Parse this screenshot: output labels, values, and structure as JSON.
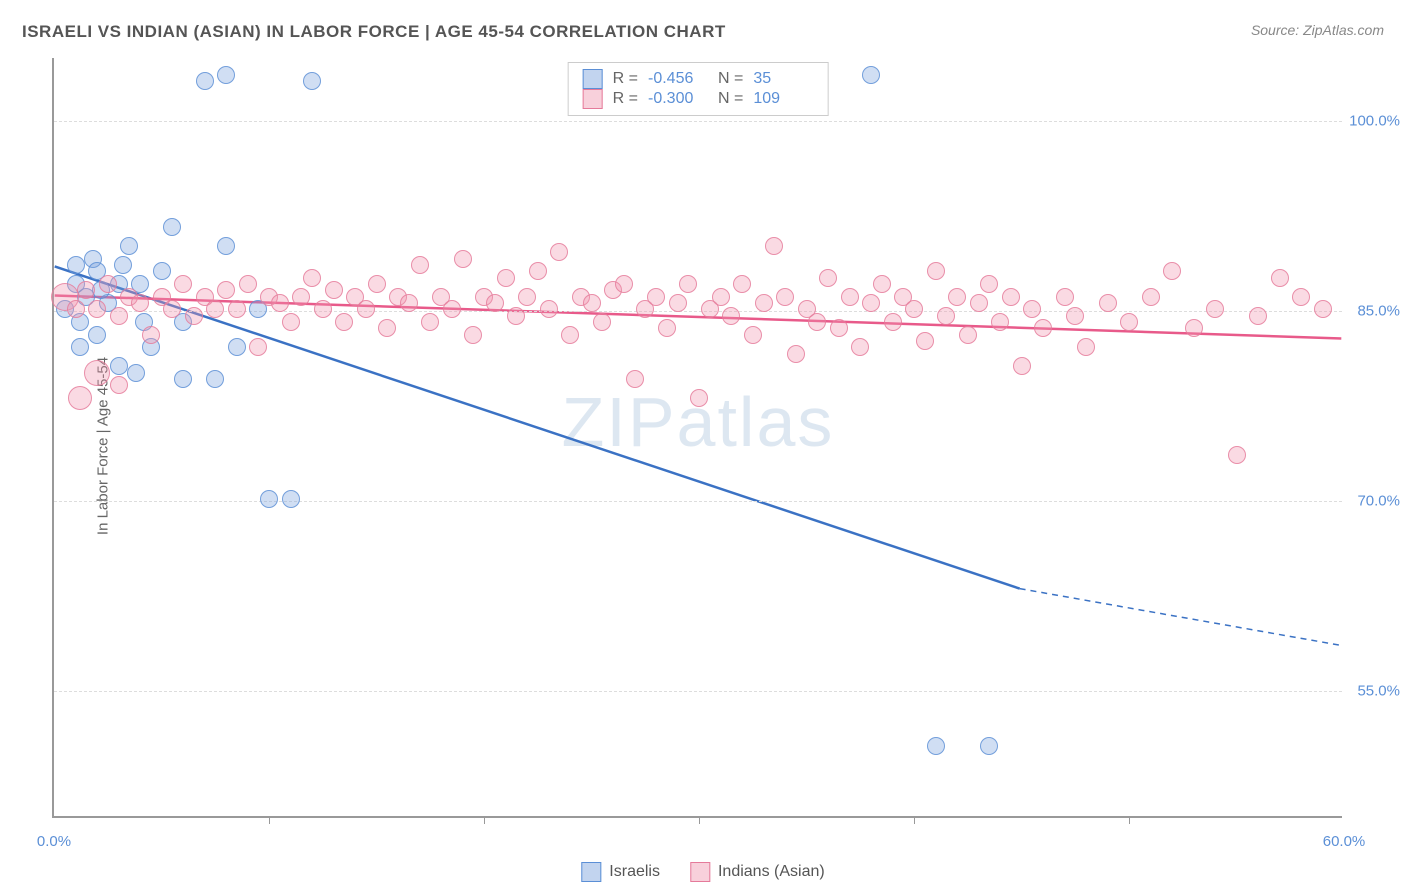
{
  "title": "ISRAELI VS INDIAN (ASIAN) IN LABOR FORCE | AGE 45-54 CORRELATION CHART",
  "source": "Source: ZipAtlas.com",
  "yaxis_label": "In Labor Force | Age 45-54",
  "watermark": "ZIPatlas",
  "chart": {
    "type": "scatter-correlation",
    "xlim": [
      0,
      60
    ],
    "ylim": [
      45,
      105
    ],
    "xtick_labels": [
      {
        "x": 0,
        "label": "0.0%"
      },
      {
        "x": 60,
        "label": "60.0%"
      }
    ],
    "xtick_minor": [
      10,
      20,
      30,
      40,
      50
    ],
    "ytick_labels": [
      {
        "y": 55,
        "label": "55.0%"
      },
      {
        "y": 70,
        "label": "70.0%"
      },
      {
        "y": 85,
        "label": "85.0%"
      },
      {
        "y": 100,
        "label": "100.0%"
      }
    ],
    "grid_color": "#dddddd",
    "axis_color": "#999999",
    "tick_label_color": "#5b8fd6",
    "background_color": "#ffffff",
    "marker_radius_default": 9,
    "series": [
      {
        "name": "Israelis",
        "color_fill": "rgba(120,160,220,0.35)",
        "color_stroke": "#5b8fd6",
        "R": "-0.456",
        "N": "35",
        "trend": {
          "x1": 0,
          "y1": 88.5,
          "x2": 45,
          "y2": 63,
          "dash_from_x": 45,
          "dash_to_x": 60,
          "dash_to_y": 58.5
        },
        "points": [
          [
            0.5,
            85
          ],
          [
            1,
            87
          ],
          [
            1.2,
            84
          ],
          [
            1.5,
            86
          ],
          [
            1.8,
            89
          ],
          [
            2,
            88
          ],
          [
            2.5,
            85.5
          ],
          [
            2,
            83
          ],
          [
            3,
            87
          ],
          [
            3.2,
            88.5
          ],
          [
            3.5,
            90
          ],
          [
            4,
            87
          ],
          [
            4.2,
            84
          ],
          [
            5,
            88
          ],
          [
            5.5,
            91.5
          ],
          [
            6,
            84
          ],
          [
            6,
            79.5
          ],
          [
            7,
            103
          ],
          [
            7.5,
            79.5
          ],
          [
            8,
            103.5
          ],
          [
            8.5,
            82
          ],
          [
            9.5,
            85
          ],
          [
            10,
            70
          ],
          [
            11,
            70
          ],
          [
            12,
            103
          ],
          [
            8,
            90
          ],
          [
            3,
            80.5
          ],
          [
            3.8,
            80
          ],
          [
            4.5,
            82
          ],
          [
            1.2,
            82
          ],
          [
            41,
            50.5
          ],
          [
            43.5,
            50.5
          ],
          [
            38,
            103.5
          ],
          [
            2.2,
            86.5
          ],
          [
            1,
            88.5
          ]
        ]
      },
      {
        "name": "Indians (Asian)",
        "color_fill": "rgba(240,150,175,0.35)",
        "color_stroke": "#e57a9a",
        "R": "-0.300",
        "N": "109",
        "trend": {
          "x1": 0,
          "y1": 86.2,
          "x2": 60,
          "y2": 82.8
        },
        "points": [
          [
            0.5,
            86,
            14
          ],
          [
            1,
            85
          ],
          [
            1.5,
            86.5
          ],
          [
            2,
            85
          ],
          [
            2.5,
            87
          ],
          [
            3,
            84.5
          ],
          [
            3,
            79
          ],
          [
            3.5,
            86
          ],
          [
            4,
            85.5
          ],
          [
            4.5,
            83
          ],
          [
            5,
            86
          ],
          [
            5.5,
            85
          ],
          [
            6,
            87
          ],
          [
            6.5,
            84.5
          ],
          [
            7,
            86
          ],
          [
            7.5,
            85
          ],
          [
            8,
            86.5
          ],
          [
            8.5,
            85
          ],
          [
            9,
            87
          ],
          [
            9.5,
            82
          ],
          [
            10,
            86
          ],
          [
            10.5,
            85.5
          ],
          [
            11,
            84
          ],
          [
            11.5,
            86
          ],
          [
            12,
            87.5
          ],
          [
            12.5,
            85
          ],
          [
            13,
            86.5
          ],
          [
            13.5,
            84
          ],
          [
            14,
            86
          ],
          [
            14.5,
            85
          ],
          [
            15,
            87
          ],
          [
            15.5,
            83.5
          ],
          [
            16,
            86
          ],
          [
            16.5,
            85.5
          ],
          [
            17,
            88.5
          ],
          [
            17.5,
            84
          ],
          [
            18,
            86
          ],
          [
            18.5,
            85
          ],
          [
            19,
            89
          ],
          [
            19.5,
            83
          ],
          [
            20,
            86
          ],
          [
            20.5,
            85.5
          ],
          [
            21,
            87.5
          ],
          [
            21.5,
            84.5
          ],
          [
            22,
            86
          ],
          [
            22.5,
            88
          ],
          [
            23,
            85
          ],
          [
            23.5,
            89.5
          ],
          [
            24,
            83
          ],
          [
            24.5,
            86
          ],
          [
            25,
            85.5
          ],
          [
            25.5,
            84
          ],
          [
            26,
            86.5
          ],
          [
            26.5,
            87
          ],
          [
            27,
            79.5
          ],
          [
            27.5,
            85
          ],
          [
            28,
            86
          ],
          [
            28.5,
            83.5
          ],
          [
            29,
            85.5
          ],
          [
            29.5,
            87
          ],
          [
            30,
            78
          ],
          [
            30.5,
            85
          ],
          [
            31,
            86
          ],
          [
            31.5,
            84.5
          ],
          [
            32,
            87
          ],
          [
            32.5,
            83
          ],
          [
            33,
            85.5
          ],
          [
            33.5,
            90
          ],
          [
            34,
            86
          ],
          [
            34.5,
            81.5
          ],
          [
            35,
            85
          ],
          [
            35.5,
            84
          ],
          [
            36,
            87.5
          ],
          [
            36.5,
            83.5
          ],
          [
            37,
            86
          ],
          [
            37.5,
            82
          ],
          [
            38,
            85.5
          ],
          [
            38.5,
            87
          ],
          [
            39,
            84
          ],
          [
            39.5,
            86
          ],
          [
            40,
            85
          ],
          [
            40.5,
            82.5
          ],
          [
            41,
            88
          ],
          [
            41.5,
            84.5
          ],
          [
            42,
            86
          ],
          [
            42.5,
            83
          ],
          [
            43,
            85.5
          ],
          [
            43.5,
            87
          ],
          [
            44,
            84
          ],
          [
            44.5,
            86
          ],
          [
            45,
            80.5
          ],
          [
            45.5,
            85
          ],
          [
            46,
            83.5
          ],
          [
            47,
            86
          ],
          [
            48,
            82
          ],
          [
            47.5,
            84.5
          ],
          [
            49,
            85.5
          ],
          [
            50,
            84
          ],
          [
            51,
            86
          ],
          [
            52,
            88
          ],
          [
            53,
            83.5
          ],
          [
            54,
            85
          ],
          [
            55,
            73.5
          ],
          [
            56,
            84.5
          ],
          [
            57,
            87.5
          ],
          [
            59,
            85
          ],
          [
            58,
            86
          ],
          [
            2,
            80,
            13
          ],
          [
            1.2,
            78,
            12
          ]
        ]
      }
    ]
  },
  "legend_bottom": [
    {
      "swatch": "blue",
      "label": "Israelis"
    },
    {
      "swatch": "pink",
      "label": "Indians (Asian)"
    }
  ]
}
